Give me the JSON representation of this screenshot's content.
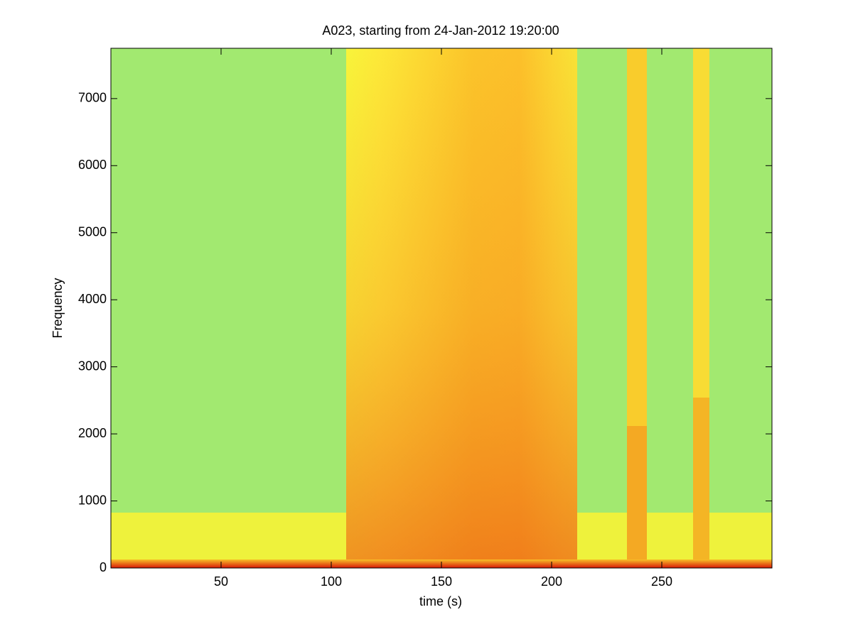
{
  "chart_data": {
    "type": "spectrogram",
    "title": "A023, starting from 24-Jan-2012 19:20:00",
    "xlabel": "time (s)",
    "ylabel": "Frequency",
    "xlim": [
      0,
      300
    ],
    "xticks": [
      50,
      100,
      150,
      200,
      250
    ],
    "ylim": [
      0,
      7750
    ],
    "yticks": [
      0,
      1000,
      2000,
      3000,
      4000,
      5000,
      6000,
      7000
    ]
  }
}
